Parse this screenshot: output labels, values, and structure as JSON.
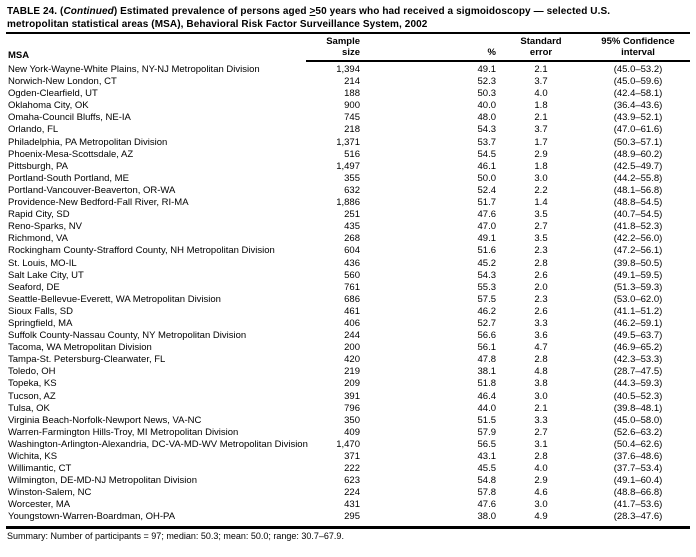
{
  "document": {
    "title": {
      "prefix": "TABLE 24. (",
      "continued": "Continued",
      "after": ") Estimated prevalence of persons aged ",
      "geq": ">",
      "line1_rest": "50 years who had received a sigmoidoscopy — selected U.S.",
      "line2": "metropolitan statistical areas (MSA), Behavioral Risk Factor Surveillance System, 2002"
    },
    "header": {
      "msa": "MSA",
      "sample_line1": "Sample",
      "sample_line2": "size",
      "percent": "%",
      "se_line1": "Standard",
      "se_line2": "error",
      "ci_line1": "95% Confidence",
      "ci_line2": "interval"
    },
    "rows": [
      {
        "msa": "New York-Wayne-White Plains, NY-NJ Metropolitan Division",
        "sample": "1,394",
        "pct": "49.1",
        "se": "2.1",
        "ci": "(45.0–53.2)"
      },
      {
        "msa": "Norwich-New London, CT",
        "sample": "214",
        "pct": "52.3",
        "se": "3.7",
        "ci": "(45.0–59.6)"
      },
      {
        "msa": "Ogden-Clearfield, UT",
        "sample": "188",
        "pct": "50.3",
        "se": "4.0",
        "ci": "(42.4–58.1)"
      },
      {
        "msa": "Oklahoma City, OK",
        "sample": "900",
        "pct": "40.0",
        "se": "1.8",
        "ci": "(36.4–43.6)"
      },
      {
        "msa": "Omaha-Council Bluffs, NE-IA",
        "sample": "745",
        "pct": "48.0",
        "se": "2.1",
        "ci": "(43.9–52.1)"
      },
      {
        "msa": "Orlando, FL",
        "sample": "218",
        "pct": "54.3",
        "se": "3.7",
        "ci": "(47.0–61.6)"
      },
      {
        "msa": "Philadelphia, PA Metropolitan Division",
        "sample": "1,371",
        "pct": "53.7",
        "se": "1.7",
        "ci": "(50.3–57.1)"
      },
      {
        "msa": "Phoenix-Mesa-Scottsdale, AZ",
        "sample": "516",
        "pct": "54.5",
        "se": "2.9",
        "ci": "(48.9–60.2)"
      },
      {
        "msa": "Pittsburgh, PA",
        "sample": "1,497",
        "pct": "46.1",
        "se": "1.8",
        "ci": "(42.5–49.7)"
      },
      {
        "msa": "Portland-South Portland, ME",
        "sample": "355",
        "pct": "50.0",
        "se": "3.0",
        "ci": "(44.2–55.8)"
      },
      {
        "msa": "Portland-Vancouver-Beaverton, OR-WA",
        "sample": "632",
        "pct": "52.4",
        "se": "2.2",
        "ci": "(48.1–56.8)"
      },
      {
        "msa": "Providence-New Bedford-Fall River, RI-MA",
        "sample": "1,886",
        "pct": "51.7",
        "se": "1.4",
        "ci": "(48.8–54.5)"
      },
      {
        "msa": "Rapid City, SD",
        "sample": "251",
        "pct": "47.6",
        "se": "3.5",
        "ci": "(40.7–54.5)"
      },
      {
        "msa": "Reno-Sparks, NV",
        "sample": "435",
        "pct": "47.0",
        "se": "2.7",
        "ci": "(41.8–52.3)"
      },
      {
        "msa": "Richmond, VA",
        "sample": "268",
        "pct": "49.1",
        "se": "3.5",
        "ci": "(42.2–56.0)"
      },
      {
        "msa": "Rockingham County-Strafford County, NH Metropolitan Division",
        "sample": "604",
        "pct": "51.6",
        "se": "2.3",
        "ci": "(47.2–56.1)"
      },
      {
        "msa": "St. Louis, MO-IL",
        "sample": "436",
        "pct": "45.2",
        "se": "2.8",
        "ci": "(39.8–50.5)"
      },
      {
        "msa": "Salt Lake City, UT",
        "sample": "560",
        "pct": "54.3",
        "se": "2.6",
        "ci": "(49.1–59.5)"
      },
      {
        "msa": "Seaford, DE",
        "sample": "761",
        "pct": "55.3",
        "se": "2.0",
        "ci": "(51.3–59.3)"
      },
      {
        "msa": "Seattle-Bellevue-Everett, WA Metropolitan Division",
        "sample": "686",
        "pct": "57.5",
        "se": "2.3",
        "ci": "(53.0–62.0)"
      },
      {
        "msa": "Sioux Falls, SD",
        "sample": "461",
        "pct": "46.2",
        "se": "2.6",
        "ci": "(41.1–51.2)"
      },
      {
        "msa": "Springfield, MA",
        "sample": "406",
        "pct": "52.7",
        "se": "3.3",
        "ci": "(46.2–59.1)"
      },
      {
        "msa": "Suffolk County-Nassau County, NY Metropolitan Division",
        "sample": "244",
        "pct": "56.6",
        "se": "3.6",
        "ci": "(49.5–63.7)"
      },
      {
        "msa": "Tacoma, WA Metropolitan Division",
        "sample": "200",
        "pct": "56.1",
        "se": "4.7",
        "ci": "(46.9–65.2)"
      },
      {
        "msa": "Tampa-St. Petersburg-Clearwater, FL",
        "sample": "420",
        "pct": "47.8",
        "se": "2.8",
        "ci": "(42.3–53.3)"
      },
      {
        "msa": "Toledo, OH",
        "sample": "219",
        "pct": "38.1",
        "se": "4.8",
        "ci": "(28.7–47.5)"
      },
      {
        "msa": "Topeka, KS",
        "sample": "209",
        "pct": "51.8",
        "se": "3.8",
        "ci": "(44.3–59.3)"
      },
      {
        "msa": "Tucson, AZ",
        "sample": "391",
        "pct": "46.4",
        "se": "3.0",
        "ci": "(40.5–52.3)"
      },
      {
        "msa": "Tulsa, OK",
        "sample": "796",
        "pct": "44.0",
        "se": "2.1",
        "ci": "(39.8–48.1)"
      },
      {
        "msa": "Virginia Beach-Norfolk-Newport News, VA-NC",
        "sample": "350",
        "pct": "51.5",
        "se": "3.3",
        "ci": "(45.0–58.0)"
      },
      {
        "msa": "Warren-Farmington Hills-Troy, MI Metropolitan Division",
        "sample": "409",
        "pct": "57.9",
        "se": "2.7",
        "ci": "(52.6–63.2)"
      },
      {
        "msa": "Washington-Arlington-Alexandria, DC-VA-MD-WV Metropolitan Division",
        "sample": "1,470",
        "pct": "56.5",
        "se": "3.1",
        "ci": "(50.4–62.6)"
      },
      {
        "msa": "Wichita, KS",
        "sample": "371",
        "pct": "43.1",
        "se": "2.8",
        "ci": "(37.6–48.6)"
      },
      {
        "msa": "Willimantic, CT",
        "sample": "222",
        "pct": "45.5",
        "se": "4.0",
        "ci": "(37.7–53.4)"
      },
      {
        "msa": "Wilmington, DE-MD-NJ Metropolitan Division",
        "sample": "623",
        "pct": "54.8",
        "se": "2.9",
        "ci": "(49.1–60.4)"
      },
      {
        "msa": "Winston-Salem, NC",
        "sample": "224",
        "pct": "57.8",
        "se": "4.6",
        "ci": "(48.8–66.8)"
      },
      {
        "msa": "Worcester, MA",
        "sample": "431",
        "pct": "47.6",
        "se": "3.0",
        "ci": "(41.7–53.6)"
      },
      {
        "msa": "Youngstown-Warren-Boardman, OH-PA",
        "sample": "295",
        "pct": "38.0",
        "se": "4.9",
        "ci": "(28.3–47.6)"
      }
    ],
    "summary": "Summary: Number of participants = 97; median: 50.3; mean: 50.0; range: 30.7–67.9."
  }
}
